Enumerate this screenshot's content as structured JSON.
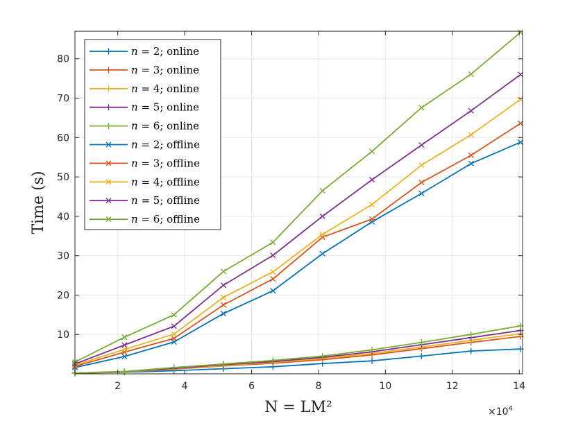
{
  "chart_data": {
    "type": "line",
    "title": "",
    "xlabel": "N = LM²",
    "ylabel": "Time (s)",
    "x_multiplier": "×10",
    "x_multiplier_exp": "4",
    "xlim": [
      0.72,
      14.1
    ],
    "ylim": [
      0,
      87
    ],
    "xticks": [
      2,
      4,
      6,
      8,
      10,
      12,
      14
    ],
    "yticks": [
      10,
      20,
      30,
      40,
      50,
      60,
      70,
      80
    ],
    "grid": true,
    "legend_position": "top-left",
    "x": [
      0.72,
      2.2,
      3.68,
      5.16,
      6.64,
      8.12,
      9.6,
      11.08,
      12.56,
      14.04
    ],
    "colors": {
      "n2": "#0072bd",
      "n3": "#d95319",
      "n4": "#edb120",
      "n5": "#7e2f8e",
      "n6": "#77ac30",
      "axis": "#262626",
      "grid": "#e6e6e6"
    },
    "series": [
      {
        "key": "n2",
        "name": "n = 2; online",
        "var": "n",
        "eq": " = 2; online",
        "marker": "+",
        "values": [
          0.2,
          0.4,
          0.8,
          1.3,
          1.8,
          2.6,
          3.3,
          4.5,
          5.8,
          6.3
        ]
      },
      {
        "key": "n3",
        "name": "n = 3; online",
        "var": "n",
        "eq": " = 3; online",
        "marker": "+",
        "values": [
          0.2,
          0.5,
          1.2,
          2.0,
          2.7,
          3.6,
          4.8,
          6.4,
          8.0,
          9.5
        ]
      },
      {
        "key": "n4",
        "name": "n = 4; online",
        "var": "n",
        "eq": " = 4; online",
        "marker": "+",
        "values": [
          0.2,
          0.5,
          1.3,
          2.1,
          2.9,
          3.9,
          5.2,
          6.8,
          8.5,
          10.2
        ]
      },
      {
        "key": "n5",
        "name": "n = 5; online",
        "var": "n",
        "eq": " = 5; online",
        "marker": "+",
        "values": [
          0.2,
          0.6,
          1.4,
          2.3,
          3.1,
          4.2,
          5.6,
          7.4,
          9.2,
          11.0
        ]
      },
      {
        "key": "n6",
        "name": "n = 6; online",
        "var": "n",
        "eq": " = 6; online",
        "marker": "+",
        "values": [
          0.2,
          0.6,
          1.6,
          2.5,
          3.4,
          4.5,
          6.1,
          8.0,
          10.0,
          12.2
        ]
      },
      {
        "key": "n2",
        "name": "n = 2; offline",
        "var": "n",
        "eq": " = 2; offline",
        "marker": "x",
        "values": [
          1.6,
          4.4,
          8.1,
          15.3,
          21.1,
          30.5,
          38.6,
          45.8,
          53.4,
          58.8
        ]
      },
      {
        "key": "n3",
        "name": "n = 3; offline",
        "var": "n",
        "eq": " = 3; offline",
        "marker": "x",
        "values": [
          1.9,
          5.5,
          9.0,
          17.5,
          24.1,
          34.7,
          39.3,
          48.6,
          55.5,
          63.6
        ]
      },
      {
        "key": "n4",
        "name": "n = 4; offline",
        "var": "n",
        "eq": " = 4; offline",
        "marker": "x",
        "values": [
          2.2,
          6.2,
          10.1,
          19.4,
          25.9,
          35.4,
          43.0,
          53.0,
          60.7,
          69.7
        ]
      },
      {
        "key": "n5",
        "name": "n = 5; offline",
        "var": "n",
        "eq": " = 5; offline",
        "marker": "x",
        "values": [
          2.5,
          7.3,
          12.1,
          22.5,
          30.1,
          40.0,
          49.3,
          58.1,
          66.8,
          76.0
        ]
      },
      {
        "key": "n6",
        "name": "n = 6; offline",
        "var": "n",
        "eq": " = 6; offline",
        "marker": "x",
        "values": [
          3.0,
          9.3,
          15.0,
          26.0,
          33.4,
          46.5,
          56.5,
          67.6,
          76.1,
          86.7
        ]
      }
    ]
  }
}
